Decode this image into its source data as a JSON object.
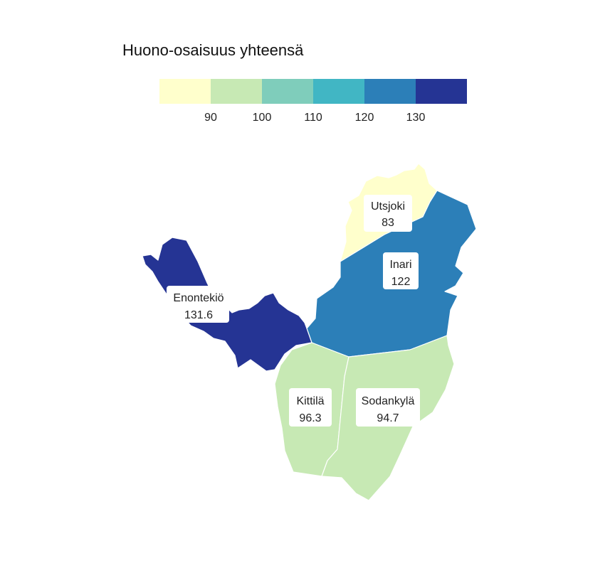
{
  "legend": {
    "title": "Huono-osaisuus yhteensä",
    "ticks": [
      "90",
      "100",
      "110",
      "120",
      "130"
    ],
    "colors": [
      "#ffffcc",
      "#c7e9b4",
      "#7fcdbb",
      "#41b6c4",
      "#2c7fb8",
      "#253494"
    ]
  },
  "regions": [
    {
      "id": "utsjoki",
      "name": "Utsjoki",
      "value": "83",
      "color": "#ffffcc"
    },
    {
      "id": "inari",
      "name": "Inari",
      "value": "122",
      "color": "#2c7fb8"
    },
    {
      "id": "enontekio",
      "name": "Enontekiö",
      "value": "131.6",
      "color": "#253494"
    },
    {
      "id": "kittila",
      "name": "Kittilä",
      "value": "96.3",
      "color": "#c7e9b4"
    },
    {
      "id": "sodankyla",
      "name": "Sodankylä",
      "value": "94.7",
      "color": "#c7e9b4"
    }
  ]
}
